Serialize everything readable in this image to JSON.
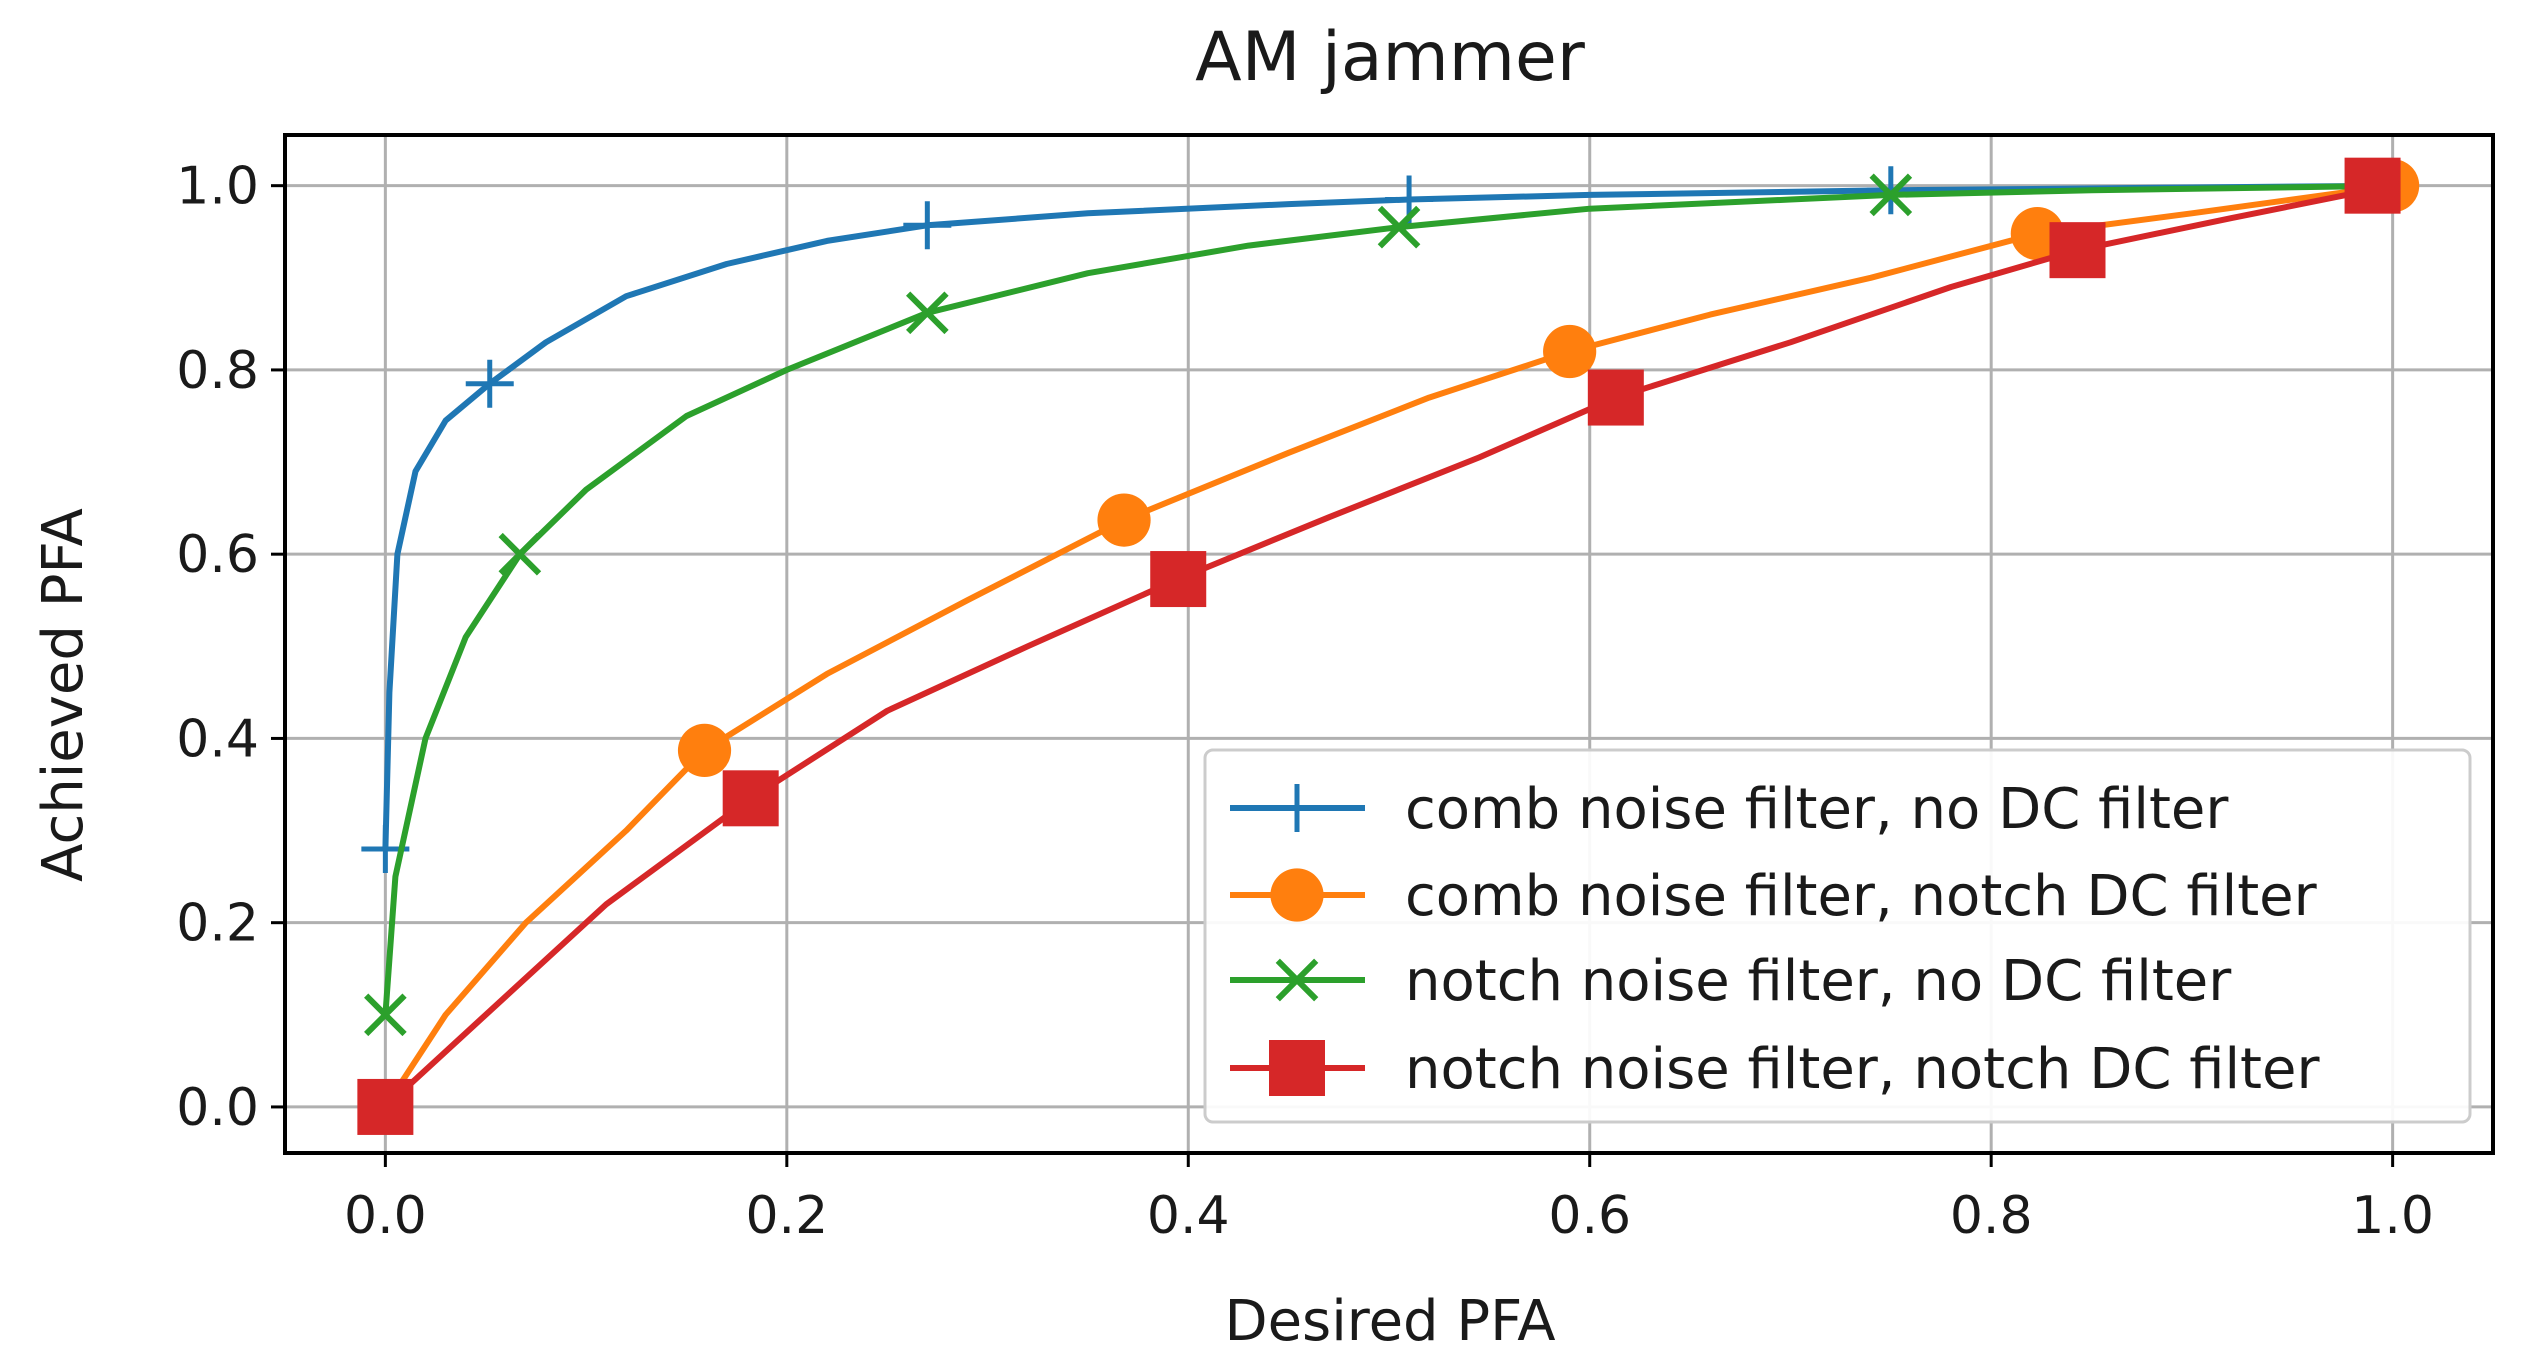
{
  "chart_data": {
    "type": "line",
    "title": "AM jammer",
    "xlabel": "Desired PFA",
    "ylabel": "Achieved PFA",
    "xlim": [
      -0.05,
      1.05
    ],
    "ylim": [
      -0.05,
      1.055
    ],
    "xticks": [
      "0.0",
      "0.2",
      "0.4",
      "0.6",
      "0.8",
      "1.0"
    ],
    "yticks": [
      "0.0",
      "0.2",
      "0.4",
      "0.6",
      "0.8",
      "1.0"
    ],
    "grid": true,
    "legend_position": "lower-right",
    "series": [
      {
        "name": "comb noise filter, no DC filter",
        "color": "#1f77b4",
        "marker": "plus",
        "curve": [
          [
            0.0,
            0.28
          ],
          [
            0.002,
            0.45
          ],
          [
            0.006,
            0.6
          ],
          [
            0.015,
            0.69
          ],
          [
            0.03,
            0.745
          ],
          [
            0.052,
            0.785
          ],
          [
            0.08,
            0.83
          ],
          [
            0.12,
            0.88
          ],
          [
            0.17,
            0.915
          ],
          [
            0.22,
            0.94
          ],
          [
            0.27,
            0.957
          ],
          [
            0.35,
            0.97
          ],
          [
            0.45,
            0.98
          ],
          [
            0.51,
            0.985
          ],
          [
            0.6,
            0.99
          ],
          [
            0.75,
            0.995
          ],
          [
            0.9,
            0.998
          ],
          [
            1.0,
            1.0
          ]
        ],
        "markers": [
          [
            0.0,
            0.28
          ],
          [
            0.052,
            0.785
          ],
          [
            0.27,
            0.957
          ],
          [
            0.51,
            0.985
          ],
          [
            0.75,
            0.995
          ],
          [
            1.0,
            1.0
          ]
        ]
      },
      {
        "name": "comb noise filter, notch DC filter",
        "color": "#ff7f0e",
        "marker": "circle",
        "curve": [
          [
            0.0,
            0.0
          ],
          [
            0.03,
            0.1
          ],
          [
            0.07,
            0.2
          ],
          [
            0.12,
            0.3
          ],
          [
            0.159,
            0.387
          ],
          [
            0.22,
            0.47
          ],
          [
            0.29,
            0.55
          ],
          [
            0.368,
            0.637
          ],
          [
            0.45,
            0.71
          ],
          [
            0.52,
            0.77
          ],
          [
            0.59,
            0.82
          ],
          [
            0.66,
            0.86
          ],
          [
            0.74,
            0.9
          ],
          [
            0.823,
            0.948
          ],
          [
            0.9,
            0.97
          ],
          [
            1.0,
            1.0
          ]
        ],
        "markers": [
          [
            0.0,
            0.0
          ],
          [
            0.159,
            0.387
          ],
          [
            0.368,
            0.637
          ],
          [
            0.59,
            0.82
          ],
          [
            0.823,
            0.948
          ],
          [
            1.0,
            1.0
          ]
        ]
      },
      {
        "name": "notch noise filter, no DC filter",
        "color": "#2ca02c",
        "marker": "x",
        "curve": [
          [
            0.0,
            0.1
          ],
          [
            0.005,
            0.25
          ],
          [
            0.02,
            0.4
          ],
          [
            0.04,
            0.51
          ],
          [
            0.067,
            0.6
          ],
          [
            0.1,
            0.67
          ],
          [
            0.15,
            0.75
          ],
          [
            0.2,
            0.8
          ],
          [
            0.27,
            0.862
          ],
          [
            0.35,
            0.905
          ],
          [
            0.43,
            0.935
          ],
          [
            0.505,
            0.955
          ],
          [
            0.6,
            0.975
          ],
          [
            0.7,
            0.985
          ],
          [
            0.75,
            0.99
          ],
          [
            0.85,
            0.995
          ],
          [
            1.0,
            1.0
          ]
        ],
        "markers": [
          [
            0.0,
            0.1
          ],
          [
            0.067,
            0.6
          ],
          [
            0.27,
            0.862
          ],
          [
            0.505,
            0.955
          ],
          [
            0.75,
            0.99
          ],
          [
            0.99,
            1.0
          ]
        ]
      },
      {
        "name": "notch noise filter, notch DC filter",
        "color": "#d62728",
        "marker": "square",
        "curve": [
          [
            0.0,
            0.0
          ],
          [
            0.05,
            0.1
          ],
          [
            0.11,
            0.22
          ],
          [
            0.182,
            0.335
          ],
          [
            0.25,
            0.43
          ],
          [
            0.32,
            0.5
          ],
          [
            0.395,
            0.573
          ],
          [
            0.47,
            0.64
          ],
          [
            0.545,
            0.705
          ],
          [
            0.613,
            0.77
          ],
          [
            0.7,
            0.83
          ],
          [
            0.78,
            0.89
          ],
          [
            0.843,
            0.93
          ],
          [
            0.92,
            0.965
          ],
          [
            1.0,
            1.0
          ]
        ],
        "markers": [
          [
            0.0,
            0.0
          ],
          [
            0.182,
            0.335
          ],
          [
            0.395,
            0.573
          ],
          [
            0.613,
            0.77
          ],
          [
            0.843,
            0.93
          ],
          [
            0.99,
            1.0
          ]
        ]
      }
    ]
  }
}
